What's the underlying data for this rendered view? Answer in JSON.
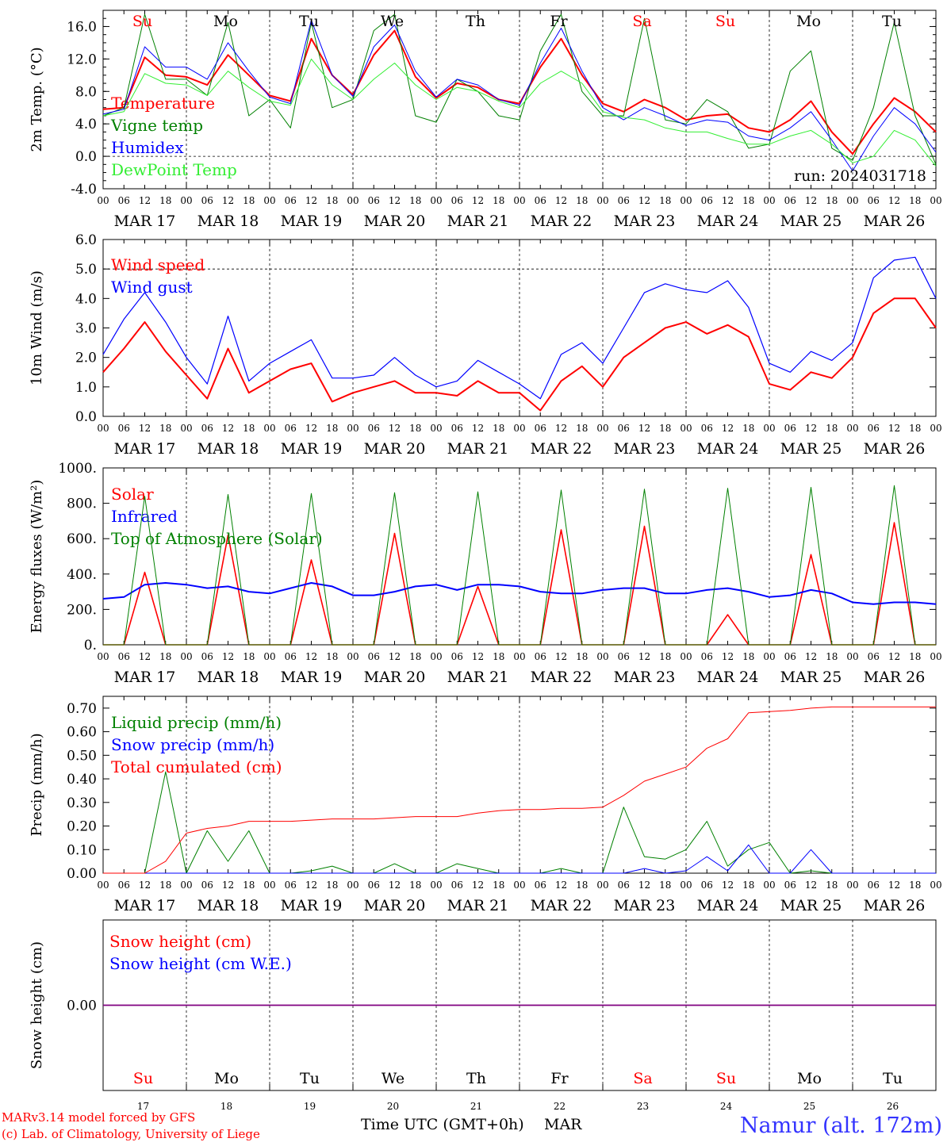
{
  "colors": {
    "red": "#ff0000",
    "green": "#008000",
    "blue": "#0000ff",
    "lightgreen": "#33ee33",
    "purple": "#800080",
    "black": "#000000",
    "namur": "#3333ff"
  },
  "days": [
    {
      "abbr": "Su",
      "date": "MAR 17",
      "num": "17",
      "weekend": true
    },
    {
      "abbr": "Mo",
      "date": "MAR 18",
      "num": "18",
      "weekend": false
    },
    {
      "abbr": "Tu",
      "date": "MAR 19",
      "num": "19",
      "weekend": false
    },
    {
      "abbr": "We",
      "date": "MAR 20",
      "num": "20",
      "weekend": false
    },
    {
      "abbr": "Th",
      "date": "MAR 21",
      "num": "21",
      "weekend": false
    },
    {
      "abbr": "Fr",
      "date": "MAR 22",
      "num": "22",
      "weekend": false
    },
    {
      "abbr": "Sa",
      "date": "MAR 23",
      "num": "23",
      "weekend": true
    },
    {
      "abbr": "Su",
      "date": "MAR 24",
      "num": "24",
      "weekend": true
    },
    {
      "abbr": "Mo",
      "date": "MAR 25",
      "num": "25",
      "weekend": false
    },
    {
      "abbr": "Tu",
      "date": "MAR 26",
      "num": "26",
      "weekend": false
    }
  ],
  "hour_ticks": [
    "00",
    "06",
    "12",
    "18"
  ],
  "hour_end": "00",
  "footer": {
    "model": "MARv3.14 model forced by GFS",
    "lab": "(c) Lab. of Climatology, University of Liege",
    "xlabel": "Time UTC (GMT+0h)",
    "month": "MAR",
    "station": "Namur (alt. 172m)"
  },
  "chart_data": [
    {
      "type": "line",
      "ylabel": "2m Temp. (°C)",
      "ylim": [
        -4,
        18
      ],
      "yticks": [
        "-4.0",
        "0.0",
        "4.0",
        "8.0",
        "12.0",
        "16.0"
      ],
      "run_label": "run: 2024031718",
      "x_hours_from_mar17_00": [
        0,
        6,
        12,
        18,
        24,
        30,
        36,
        42,
        48,
        54,
        60,
        66,
        72,
        78,
        84,
        90,
        96,
        102,
        108,
        114,
        120,
        126,
        132,
        138,
        144,
        150,
        156,
        162,
        168,
        174,
        180,
        186,
        192,
        198,
        204,
        210,
        216,
        222,
        228,
        234,
        240
      ],
      "series": [
        {
          "name": "Temperature",
          "color": "red",
          "values": [
            5.8,
            6.0,
            12.2,
            10.0,
            9.8,
            8.8,
            12.5,
            10.0,
            7.5,
            6.8,
            14.5,
            10.0,
            7.6,
            12.5,
            15.5,
            9.8,
            7.2,
            9.0,
            8.5,
            7.0,
            6.5,
            11.0,
            14.5,
            10.0,
            6.5,
            5.5,
            7.0,
            6.0,
            4.5,
            5.0,
            5.2,
            3.5,
            3.0,
            4.5,
            6.8,
            3.0,
            0.3,
            4.0,
            7.2,
            5.5,
            3.0
          ]
        },
        {
          "name": "Vigne temp",
          "color": "green",
          "values": [
            5.0,
            6.0,
            17.5,
            9.5,
            9.5,
            7.5,
            16.5,
            5.0,
            7.0,
            3.5,
            16.5,
            6.0,
            7.0,
            15.5,
            17.5,
            5.0,
            4.2,
            9.5,
            8.0,
            5.0,
            4.5,
            13.0,
            17.5,
            8.0,
            5.0,
            5.0,
            17.0,
            4.5,
            4.0,
            7.0,
            5.5,
            1.0,
            1.5,
            10.5,
            13.0,
            1.0,
            -0.5,
            6.0,
            16.5,
            5.0,
            -1.0
          ]
        },
        {
          "name": "Humidex",
          "color": "blue",
          "values": [
            5.2,
            5.8,
            13.5,
            11.0,
            11.0,
            9.5,
            14.0,
            10.5,
            7.3,
            6.5,
            16.8,
            10.0,
            7.4,
            13.5,
            16.2,
            10.5,
            7.3,
            9.5,
            8.8,
            7.0,
            6.3,
            11.5,
            15.8,
            10.5,
            6.0,
            4.5,
            6.0,
            5.0,
            3.8,
            4.5,
            4.2,
            2.5,
            2.0,
            3.5,
            5.5,
            2.0,
            -1.8,
            2.5,
            6.0,
            4.0,
            0.5
          ]
        },
        {
          "name": "DewPoint Temp",
          "color": "lightgreen",
          "values": [
            5.0,
            5.5,
            10.2,
            9.0,
            8.8,
            7.5,
            10.5,
            8.5,
            6.8,
            6.3,
            12.0,
            8.8,
            7.0,
            9.5,
            11.5,
            8.8,
            7.0,
            8.5,
            8.0,
            6.8,
            6.0,
            9.0,
            10.5,
            9.0,
            5.5,
            4.8,
            4.5,
            3.5,
            3.0,
            3.0,
            2.2,
            1.5,
            1.5,
            2.5,
            3.2,
            1.5,
            -0.8,
            0.0,
            3.2,
            2.0,
            -1.2
          ]
        }
      ]
    },
    {
      "type": "line",
      "ylabel": "10m Wind (m/s)",
      "ylim": [
        0,
        6
      ],
      "yticks": [
        "0.0",
        "1.0",
        "2.0",
        "3.0",
        "4.0",
        "5.0",
        "6.0"
      ],
      "x_hours_from_mar17_00": [
        0,
        6,
        12,
        18,
        24,
        30,
        36,
        42,
        48,
        54,
        60,
        66,
        72,
        78,
        84,
        90,
        96,
        102,
        108,
        114,
        120,
        126,
        132,
        138,
        144,
        150,
        156,
        162,
        168,
        174,
        180,
        186,
        192,
        198,
        204,
        210,
        216,
        222,
        228,
        234,
        240
      ],
      "series": [
        {
          "name": "Wind speed",
          "color": "red",
          "values": [
            1.5,
            2.3,
            3.2,
            2.2,
            1.4,
            0.6,
            2.3,
            0.8,
            1.2,
            1.6,
            1.8,
            0.5,
            0.8,
            1.0,
            1.2,
            0.8,
            0.8,
            0.7,
            1.2,
            0.8,
            0.8,
            0.2,
            1.2,
            1.7,
            1.0,
            2.0,
            2.5,
            3.0,
            3.2,
            2.8,
            3.1,
            2.7,
            1.1,
            0.9,
            1.5,
            1.3,
            2.0,
            3.5,
            4.0,
            4.0,
            3.0
          ]
        },
        {
          "name": "Wind gust",
          "color": "blue",
          "values": [
            2.1,
            3.3,
            4.2,
            3.2,
            2.0,
            1.1,
            3.4,
            1.2,
            1.8,
            2.2,
            2.6,
            1.3,
            1.3,
            1.4,
            2.0,
            1.4,
            1.0,
            1.2,
            1.9,
            1.5,
            1.1,
            0.6,
            2.1,
            2.5,
            1.8,
            3.0,
            4.2,
            4.5,
            4.3,
            4.2,
            4.6,
            3.7,
            1.8,
            1.5,
            2.2,
            1.9,
            2.5,
            4.7,
            5.3,
            5.4,
            4.0
          ]
        }
      ]
    },
    {
      "type": "line",
      "ylabel": "Energy fluxes (W/m²)",
      "ylim": [
        0,
        1000
      ],
      "yticks": [
        "0.",
        "200.",
        "400.",
        "600.",
        "800.",
        "1000."
      ],
      "x_hours_from_mar17_00": [
        0,
        6,
        12,
        18,
        24,
        30,
        36,
        42,
        48,
        54,
        60,
        66,
        72,
        78,
        84,
        90,
        96,
        102,
        108,
        114,
        120,
        126,
        132,
        138,
        144,
        150,
        156,
        162,
        168,
        174,
        180,
        186,
        192,
        198,
        204,
        210,
        216,
        222,
        228,
        234,
        240
      ],
      "series": [
        {
          "name": "Solar",
          "color": "red",
          "values": [
            0,
            0,
            410,
            0,
            0,
            0,
            620,
            0,
            0,
            0,
            480,
            0,
            0,
            0,
            630,
            0,
            0,
            0,
            330,
            0,
            0,
            0,
            650,
            0,
            0,
            0,
            670,
            0,
            0,
            0,
            170,
            0,
            0,
            0,
            510,
            0,
            0,
            0,
            690,
            0,
            0
          ]
        },
        {
          "name": "Infrared",
          "color": "blue",
          "values": [
            260,
            270,
            340,
            350,
            340,
            320,
            330,
            300,
            290,
            320,
            350,
            330,
            280,
            280,
            300,
            330,
            340,
            310,
            340,
            340,
            330,
            300,
            290,
            290,
            310,
            320,
            320,
            290,
            290,
            310,
            320,
            300,
            270,
            280,
            310,
            290,
            240,
            230,
            240,
            240,
            230
          ]
        },
        {
          "name": "Top of Atmosphere (Solar)",
          "color": "green",
          "values": [
            0,
            0,
            840,
            0,
            0,
            0,
            850,
            0,
            0,
            0,
            855,
            0,
            0,
            0,
            860,
            0,
            0,
            0,
            865,
            0,
            0,
            0,
            875,
            0,
            0,
            0,
            880,
            0,
            0,
            0,
            885,
            0,
            0,
            0,
            890,
            0,
            0,
            0,
            900,
            0,
            0
          ]
        }
      ]
    },
    {
      "type": "line",
      "ylabel": "Precip (mm/h)",
      "ylim": [
        0,
        0.75
      ],
      "yticks": [
        "0.00",
        "0.10",
        "0.20",
        "0.30",
        "0.40",
        "0.50",
        "0.60",
        "0.70"
      ],
      "x_hours_from_mar17_00": [
        0,
        6,
        12,
        18,
        24,
        30,
        36,
        42,
        48,
        54,
        60,
        66,
        72,
        78,
        84,
        90,
        96,
        102,
        108,
        114,
        120,
        126,
        132,
        138,
        144,
        150,
        156,
        162,
        168,
        174,
        180,
        186,
        192,
        198,
        204,
        210,
        216,
        222,
        228,
        234,
        240
      ],
      "series": [
        {
          "name": "Liquid precip (mm/h)",
          "color": "green",
          "values": [
            0,
            0,
            0,
            0.43,
            0,
            0.18,
            0.05,
            0.18,
            0,
            0,
            0.01,
            0.03,
            0,
            0,
            0.04,
            0,
            0,
            0.04,
            0.02,
            0,
            0,
            0,
            0.02,
            0,
            0,
            0.28,
            0.07,
            0.06,
            0.1,
            0.22,
            0.03,
            0.1,
            0.13,
            0,
            0.01,
            0,
            0,
            0,
            0,
            0,
            0
          ]
        },
        {
          "name": "Snow precip (mm/h)",
          "color": "blue",
          "values": [
            0,
            0,
            0,
            0,
            0,
            0,
            0,
            0,
            0,
            0,
            0,
            0,
            0,
            0,
            0,
            0,
            0,
            0,
            0,
            0,
            0,
            0,
            0,
            0,
            0,
            0,
            0.02,
            0,
            0.01,
            0.07,
            0.01,
            0.12,
            0,
            0,
            0.1,
            0,
            0,
            0,
            0,
            0,
            0
          ]
        },
        {
          "name": "Total cumulated (cm)",
          "color": "red",
          "values": [
            0,
            0,
            0,
            0.05,
            0.17,
            0.19,
            0.2,
            0.22,
            0.22,
            0.22,
            0.225,
            0.23,
            0.23,
            0.23,
            0.235,
            0.24,
            0.24,
            0.24,
            0.255,
            0.265,
            0.27,
            0.27,
            0.275,
            0.275,
            0.28,
            0.33,
            0.39,
            0.42,
            0.45,
            0.53,
            0.57,
            0.68,
            0.685,
            0.69,
            0.7,
            0.705,
            0.705,
            0.705,
            0.705,
            0.705,
            0.705
          ]
        }
      ]
    },
    {
      "type": "line",
      "ylabel": "Snow height (cm)",
      "ylim": [
        -1,
        1
      ],
      "yticks": [
        "0.00"
      ],
      "x_hours_from_mar17_00": [
        0,
        240
      ],
      "series": [
        {
          "name": "Snow height (cm)",
          "color": "red",
          "values": [
            0,
            0
          ]
        },
        {
          "name": "Snow height (cm W.E.)",
          "color": "blue",
          "values": [
            0,
            0
          ]
        }
      ]
    }
  ]
}
